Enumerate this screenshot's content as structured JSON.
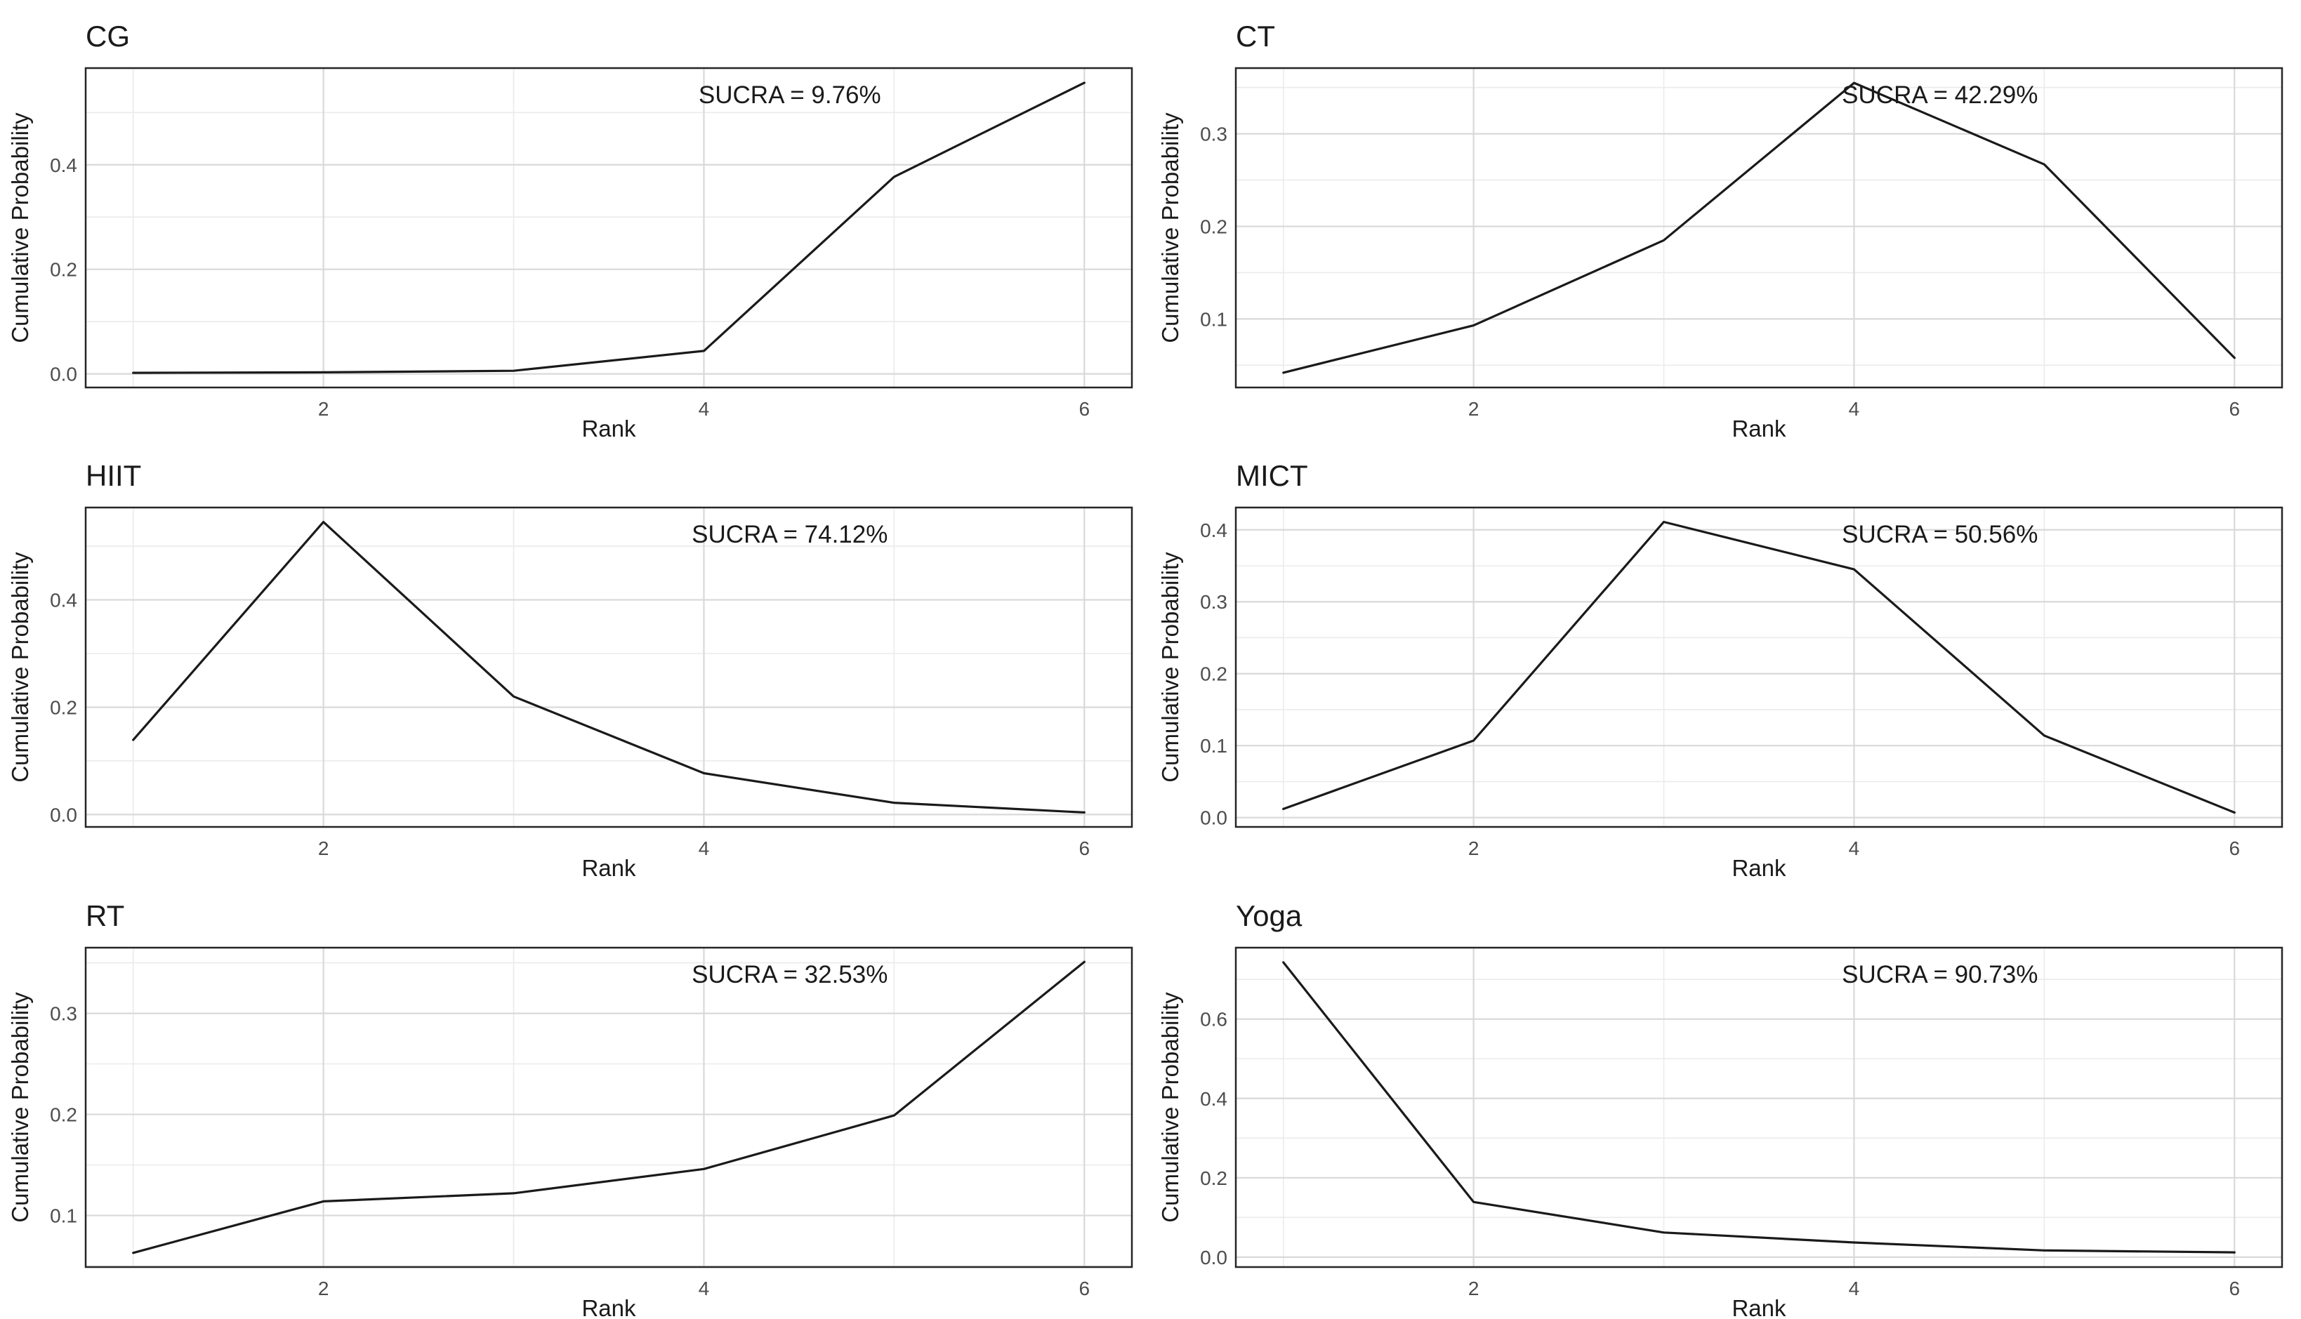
{
  "figure": {
    "background": "#ffffff",
    "description": "Cumulative ranking probability curves with SUCRA values for six interventions",
    "grid": "on",
    "legend": "none"
  },
  "colors": {
    "line": "#1a1a1a",
    "panel_border": "#262626",
    "grid_major": "#d9d9d9",
    "grid_minor": "#ebebeb",
    "tick_label": "#4d4d4d",
    "axis_title": "#1a1a1a",
    "panel_bg": "#ffffff"
  },
  "chart_data": [
    {
      "type": "line",
      "title": "CG",
      "annotation": "SUCRA = 9.76%",
      "xlabel": "Rank",
      "ylabel": "Cumulative Probability",
      "x": [
        1,
        2,
        3,
        4,
        5,
        6
      ],
      "values": [
        0.002,
        0.003,
        0.006,
        0.044,
        0.377,
        0.557
      ],
      "xlim": [
        0.75,
        6.25
      ],
      "ylim": [
        -0.026,
        0.585
      ],
      "x_major_ticks": [
        2,
        4,
        6
      ],
      "x_minor_ticks": [
        1,
        3,
        5
      ],
      "x_tick_labels": [
        "2",
        "4",
        "6"
      ],
      "y_major_ticks": [
        0.0,
        0.2,
        0.4
      ],
      "y_minor_ticks": [
        0.1,
        0.3,
        0.5
      ],
      "y_tick_labels": [
        "0.0",
        "0.2",
        "0.4"
      ]
    },
    {
      "type": "line",
      "title": "CT",
      "annotation": "SUCRA = 42.29%",
      "xlabel": "Rank",
      "ylabel": "Cumulative Probability",
      "x": [
        1,
        2,
        3,
        4,
        5,
        6
      ],
      "values": [
        0.042,
        0.093,
        0.185,
        0.355,
        0.267,
        0.058
      ],
      "xlim": [
        0.75,
        6.25
      ],
      "ylim": [
        0.026,
        0.371
      ],
      "x_major_ticks": [
        2,
        4,
        6
      ],
      "x_minor_ticks": [
        1,
        3,
        5
      ],
      "x_tick_labels": [
        "2",
        "4",
        "6"
      ],
      "y_major_ticks": [
        0.1,
        0.2,
        0.3
      ],
      "y_minor_ticks": [
        0.05,
        0.15,
        0.25,
        0.35
      ],
      "y_tick_labels": [
        "0.1",
        "0.2",
        "0.3"
      ]
    },
    {
      "type": "line",
      "title": "HIIT",
      "annotation": "SUCRA = 74.12%",
      "xlabel": "Rank",
      "ylabel": "Cumulative Probability",
      "x": [
        1,
        2,
        3,
        4,
        5,
        6
      ],
      "values": [
        0.139,
        0.545,
        0.22,
        0.077,
        0.022,
        0.004
      ],
      "xlim": [
        0.75,
        6.25
      ],
      "ylim": [
        -0.023,
        0.572
      ],
      "x_major_ticks": [
        2,
        4,
        6
      ],
      "x_minor_ticks": [
        1,
        3,
        5
      ],
      "x_tick_labels": [
        "2",
        "4",
        "6"
      ],
      "y_major_ticks": [
        0.0,
        0.2,
        0.4
      ],
      "y_minor_ticks": [
        0.1,
        0.3,
        0.5
      ],
      "y_tick_labels": [
        "0.0",
        "0.2",
        "0.4"
      ]
    },
    {
      "type": "line",
      "title": "MICT",
      "annotation": "SUCRA = 50.56%",
      "xlabel": "Rank",
      "ylabel": "Cumulative Probability",
      "x": [
        1,
        2,
        3,
        4,
        5,
        6
      ],
      "values": [
        0.012,
        0.107,
        0.411,
        0.345,
        0.114,
        0.007
      ],
      "xlim": [
        0.75,
        6.25
      ],
      "ylim": [
        -0.013,
        0.431
      ],
      "x_major_ticks": [
        2,
        4,
        6
      ],
      "x_minor_ticks": [
        1,
        3,
        5
      ],
      "x_tick_labels": [
        "2",
        "4",
        "6"
      ],
      "y_major_ticks": [
        0.0,
        0.1,
        0.2,
        0.3,
        0.4
      ],
      "y_minor_ticks": [
        0.05,
        0.15,
        0.25,
        0.35
      ],
      "y_tick_labels": [
        "0.0",
        "0.1",
        "0.2",
        "0.3",
        "0.4"
      ]
    },
    {
      "type": "line",
      "title": "RT",
      "annotation": "SUCRA = 32.53%",
      "xlabel": "Rank",
      "ylabel": "Cumulative Probability",
      "x": [
        1,
        2,
        3,
        4,
        5,
        6
      ],
      "values": [
        0.063,
        0.114,
        0.122,
        0.146,
        0.199,
        0.351
      ],
      "xlim": [
        0.75,
        6.25
      ],
      "ylim": [
        0.049,
        0.365
      ],
      "x_major_ticks": [
        2,
        4,
        6
      ],
      "x_minor_ticks": [
        1,
        3,
        5
      ],
      "x_tick_labels": [
        "2",
        "4",
        "6"
      ],
      "y_major_ticks": [
        0.1,
        0.2,
        0.3
      ],
      "y_minor_ticks": [
        0.05,
        0.15,
        0.25,
        0.35
      ],
      "y_tick_labels": [
        "0.1",
        "0.2",
        "0.3"
      ]
    },
    {
      "type": "line",
      "title": "Yoga",
      "annotation": "SUCRA = 90.73%",
      "xlabel": "Rank",
      "ylabel": "Cumulative Probability",
      "x": [
        1,
        2,
        3,
        4,
        5,
        6
      ],
      "values": [
        0.743,
        0.139,
        0.062,
        0.037,
        0.017,
        0.012
      ],
      "xlim": [
        0.75,
        6.25
      ],
      "ylim": [
        -0.025,
        0.78
      ],
      "x_major_ticks": [
        2,
        4,
        6
      ],
      "x_minor_ticks": [
        1,
        3,
        5
      ],
      "x_tick_labels": [
        "2",
        "4",
        "6"
      ],
      "y_major_ticks": [
        0.0,
        0.2,
        0.4,
        0.6
      ],
      "y_minor_ticks": [
        0.1,
        0.3,
        0.5,
        0.7
      ],
      "y_tick_labels": [
        "0.0",
        "0.2",
        "0.4",
        "0.6"
      ]
    }
  ]
}
